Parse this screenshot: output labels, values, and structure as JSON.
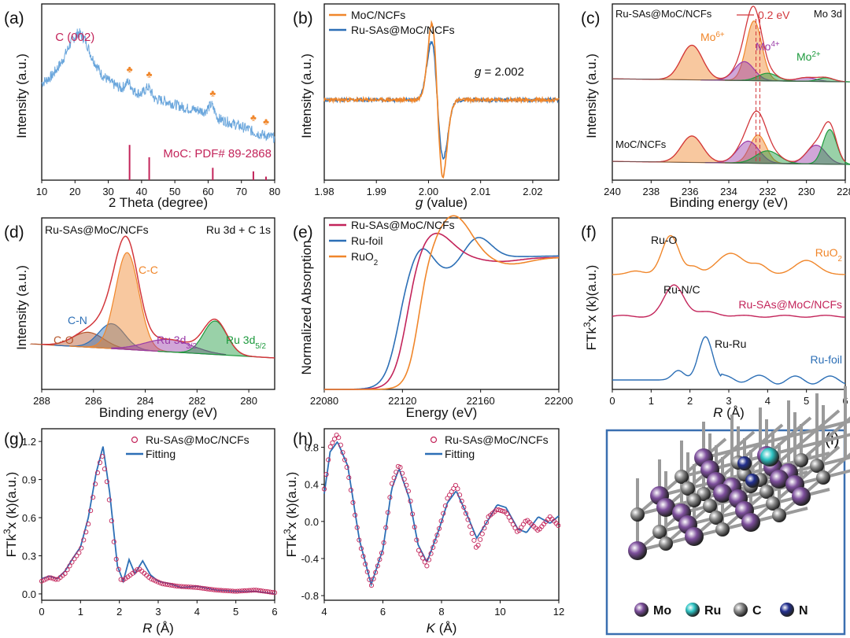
{
  "colors": {
    "orange": "#f0862a",
    "blue": "#2c6fb6",
    "crimson": "#c3245a",
    "purple": "#9a3aa8",
    "green": "#1d9a3d",
    "brown": "#b5552a",
    "lightblue": "#6aa6dc",
    "atom_mo": "#7d4f9c",
    "atom_ru": "#2ec4c4",
    "atom_c": "#8c8c8c",
    "atom_n": "#23308f"
  },
  "chart_data": [
    {
      "panel": "(a)",
      "type": "line",
      "xlabel": "2 Theta (degree)",
      "ylabel": "Intensity (a.u.)",
      "xlim": [
        10,
        80
      ],
      "xticks": [
        10,
        20,
        30,
        40,
        50,
        60,
        70,
        80
      ],
      "series": [
        {
          "values": [
            [
              10,
              0.55
            ],
            [
              13,
              0.59
            ],
            [
              16,
              0.67
            ],
            [
              19,
              0.79
            ],
            [
              21,
              0.84
            ],
            [
              23,
              0.8
            ],
            [
              25,
              0.7
            ],
            [
              28,
              0.6
            ],
            [
              31,
              0.55
            ],
            [
              34,
              0.52
            ],
            [
              36,
              0.56
            ],
            [
              38,
              0.5
            ],
            [
              40,
              0.49
            ],
            [
              42,
              0.53
            ],
            [
              44,
              0.46
            ],
            [
              47,
              0.45
            ],
            [
              50,
              0.43
            ],
            [
              53,
              0.41
            ],
            [
              56,
              0.4
            ],
            [
              59,
              0.39
            ],
            [
              61,
              0.43
            ],
            [
              63,
              0.35
            ],
            [
              66,
              0.33
            ],
            [
              69,
              0.31
            ],
            [
              72,
              0.29
            ],
            [
              74,
              0.27
            ],
            [
              76,
              0.26
            ],
            [
              78,
              0.25
            ],
            [
              80,
              0.24
            ]
          ]
        }
      ],
      "reference_label": "MoC: PDF# 89-2868",
      "reference_lines": [
        36.4,
        42.3,
        61.4,
        73.6,
        77.4
      ],
      "reference_heights": [
        0.2,
        0.13,
        0.07,
        0.05,
        0.02
      ],
      "markers": [
        36.4,
        42.3,
        61.4,
        73.6,
        77.4
      ],
      "annotations": [
        "C (002)"
      ]
    },
    {
      "panel": "(b)",
      "type": "line",
      "xlabel": "g (value)",
      "ylabel": "Intensity (a.u.)",
      "xlim": [
        1.98,
        2.025
      ],
      "xticks": [
        "1.98",
        "1.99",
        "2.00",
        "2.01",
        "2.02"
      ],
      "legend": [
        "MoC/NCFs",
        "Ru-SAs@MoC/NCFs"
      ],
      "annotations": [
        "g = 2.002"
      ]
    },
    {
      "panel": "(c)",
      "type": "line",
      "xlabel": "Binding energy (eV)",
      "ylabel": "Intensity (a.u.)",
      "xlim": [
        240,
        228
      ],
      "xticks": [
        240,
        238,
        236,
        234,
        232,
        230,
        228
      ],
      "title_right": "Mo 3d",
      "labels": [
        "Ru-SAs@MoC/NCFs",
        "MoC/NCFs",
        "0.2 eV",
        "Mo6+",
        "Mo4+",
        "Mo2+"
      ],
      "peaks_top": [
        {
          "species": "Mo6+",
          "center": 235.9
        },
        {
          "species": "Mo6+",
          "center": 232.7
        },
        {
          "species": "Mo4+",
          "center": 233.2
        },
        {
          "species": "Mo4+",
          "center": 230
        },
        {
          "species": "Mo2+",
          "center": 232
        },
        {
          "species": "Mo2+",
          "center": 229
        }
      ],
      "peaks_bottom": [
        {
          "species": "Mo6+",
          "center": 235.9
        },
        {
          "species": "Mo6+",
          "center": 232.5
        },
        {
          "species": "Mo4+",
          "center": 233
        },
        {
          "species": "Mo4+",
          "center": 229.5
        },
        {
          "species": "Mo2+",
          "center": 232
        },
        {
          "species": "Mo2+",
          "center": 228.8
        }
      ]
    },
    {
      "panel": "(d)",
      "type": "line",
      "xlabel": "Binding energy (eV)",
      "ylabel": "Intensity (a.u.)",
      "xlim": [
        288,
        279
      ],
      "xticks": [
        288,
        286,
        284,
        282,
        280
      ],
      "title_left": "Ru-SAs@MoC/NCFs",
      "title_right": "Ru 3d + C 1s",
      "peaks": [
        {
          "name": "C-O",
          "center": 286.2
        },
        {
          "name": "C-N",
          "center": 285.3
        },
        {
          "name": "C-C",
          "center": 284.7
        },
        {
          "name": "Ru 3d3/2",
          "center": 283.1
        },
        {
          "name": "Ru 3d5/2",
          "center": 281.3
        }
      ]
    },
    {
      "panel": "(e)",
      "type": "line",
      "xlabel": "Energy (eV)",
      "ylabel": "Normalized Absorption",
      "xlim": [
        22080,
        22200
      ],
      "xticks": [
        22080,
        22120,
        22160,
        22200
      ],
      "legend": [
        "Ru-SAs@MoC/NCFs",
        "Ru-foil",
        "RuO2"
      ]
    },
    {
      "panel": "(f)",
      "type": "line",
      "xlabel": "R (Å)",
      "ylabel": "FTk3x (k)(a.u.)",
      "xlim": [
        0,
        6
      ],
      "xticks": [
        0,
        1,
        2,
        3,
        4,
        5,
        6
      ],
      "series_labels": [
        "RuO2",
        "Ru-SAs@MoC/NCFs",
        "Ru-foil"
      ],
      "peak_labels": [
        "Ru-O",
        "Ru-N/C",
        "Ru-Ru"
      ]
    },
    {
      "panel": "(g)",
      "type": "line",
      "xlabel": "R (Å)",
      "ylabel": "FTk3x (k)(a.u.)",
      "xlim": [
        0,
        6
      ],
      "ylim": [
        -0.05,
        1.3
      ],
      "xticks": [
        0,
        1,
        2,
        3,
        4,
        5,
        6
      ],
      "yticks": [
        "0.0",
        "0.3",
        "0.6",
        "0.9",
        "1.2"
      ],
      "legend": [
        "Ru-SAs@MoC/NCFs",
        "Fitting"
      ],
      "series": [
        {
          "name": "Fitting",
          "values": [
            [
              0,
              0.12
            ],
            [
              0.2,
              0.14
            ],
            [
              0.4,
              0.12
            ],
            [
              0.6,
              0.18
            ],
            [
              0.8,
              0.28
            ],
            [
              1.0,
              0.37
            ],
            [
              1.2,
              0.6
            ],
            [
              1.4,
              0.95
            ],
            [
              1.58,
              1.16
            ],
            [
              1.75,
              0.8
            ],
            [
              1.95,
              0.22
            ],
            [
              2.1,
              0.1
            ],
            [
              2.25,
              0.27
            ],
            [
              2.4,
              0.16
            ],
            [
              2.6,
              0.26
            ],
            [
              2.8,
              0.15
            ],
            [
              3.0,
              0.1
            ],
            [
              3.3,
              0.08
            ],
            [
              3.6,
              0.05
            ],
            [
              4.0,
              0.06
            ],
            [
              4.5,
              0.03
            ],
            [
              5.0,
              0.02
            ],
            [
              5.5,
              0.02
            ],
            [
              6.0,
              0.0
            ]
          ]
        },
        {
          "name": "Ru-SAs@MoC/NCFs",
          "values": [
            [
              0,
              0.1
            ],
            [
              0.2,
              0.13
            ],
            [
              0.4,
              0.11
            ],
            [
              0.6,
              0.16
            ],
            [
              0.8,
              0.26
            ],
            [
              1.0,
              0.34
            ],
            [
              1.2,
              0.55
            ],
            [
              1.4,
              0.9
            ],
            [
              1.55,
              1.1
            ],
            [
              1.7,
              0.85
            ],
            [
              1.9,
              0.3
            ],
            [
              2.05,
              0.1
            ],
            [
              2.25,
              0.14
            ],
            [
              2.5,
              0.2
            ],
            [
              2.8,
              0.12
            ],
            [
              3.1,
              0.08
            ],
            [
              3.5,
              0.06
            ],
            [
              4.0,
              0.05
            ],
            [
              4.5,
              0.03
            ],
            [
              5.0,
              0.02
            ],
            [
              5.5,
              0.03
            ],
            [
              6.0,
              0.01
            ]
          ]
        }
      ]
    },
    {
      "panel": "(h)",
      "type": "line",
      "xlabel": "K (Å)",
      "ylabel": "FTk3x (k)(a.u.)",
      "xlim": [
        4,
        12
      ],
      "ylim": [
        -0.85,
        1.0
      ],
      "xticks": [
        4,
        6,
        8,
        10,
        12
      ],
      "yticks": [
        "-0.8",
        "-0.4",
        "0.0",
        "0.4",
        "0.8"
      ],
      "legend": [
        "Ru-SAs@MoC/NCFs",
        "Fitting"
      ],
      "series": [
        {
          "name": "Fitting",
          "values": [
            [
              4,
              0.3
            ],
            [
              4.2,
              0.75
            ],
            [
              4.45,
              0.86
            ],
            [
              4.8,
              0.6
            ],
            [
              5.2,
              -0.2
            ],
            [
              5.6,
              -0.68
            ],
            [
              6.0,
              -0.3
            ],
            [
              6.3,
              0.35
            ],
            [
              6.55,
              0.57
            ],
            [
              6.9,
              0.25
            ],
            [
              7.2,
              -0.25
            ],
            [
              7.5,
              -0.44
            ],
            [
              7.9,
              -0.1
            ],
            [
              8.2,
              0.2
            ],
            [
              8.5,
              0.33
            ],
            [
              8.9,
              0.05
            ],
            [
              9.2,
              -0.18
            ],
            [
              9.6,
              0.02
            ],
            [
              9.9,
              0.18
            ],
            [
              10.2,
              0.15
            ],
            [
              10.6,
              -0.08
            ],
            [
              10.9,
              -0.12
            ],
            [
              11.3,
              0.05
            ],
            [
              11.7,
              -0.02
            ],
            [
              12.0,
              0.06
            ]
          ]
        },
        {
          "name": "Ru-SAs@MoC/NCFs",
          "values": [
            [
              4,
              0.35
            ],
            [
              4.2,
              0.8
            ],
            [
              4.45,
              0.95
            ],
            [
              4.8,
              0.55
            ],
            [
              5.2,
              -0.22
            ],
            [
              5.6,
              -0.7
            ],
            [
              6.0,
              -0.3
            ],
            [
              6.3,
              0.4
            ],
            [
              6.55,
              0.62
            ],
            [
              6.9,
              0.3
            ],
            [
              7.2,
              -0.3
            ],
            [
              7.5,
              -0.48
            ],
            [
              7.9,
              -0.1
            ],
            [
              8.2,
              0.25
            ],
            [
              8.5,
              0.4
            ],
            [
              8.9,
              0.02
            ],
            [
              9.2,
              -0.3
            ],
            [
              9.6,
              0.05
            ],
            [
              9.9,
              0.13
            ],
            [
              10.2,
              0.1
            ],
            [
              10.6,
              -0.12
            ],
            [
              10.9,
              0.02
            ],
            [
              11.3,
              -0.1
            ],
            [
              11.7,
              0.05
            ],
            [
              12.0,
              -0.05
            ]
          ]
        }
      ]
    },
    {
      "panel": "(i)",
      "type": "diagram",
      "legend": [
        "Mo",
        "Ru",
        "C",
        "N"
      ]
    }
  ]
}
